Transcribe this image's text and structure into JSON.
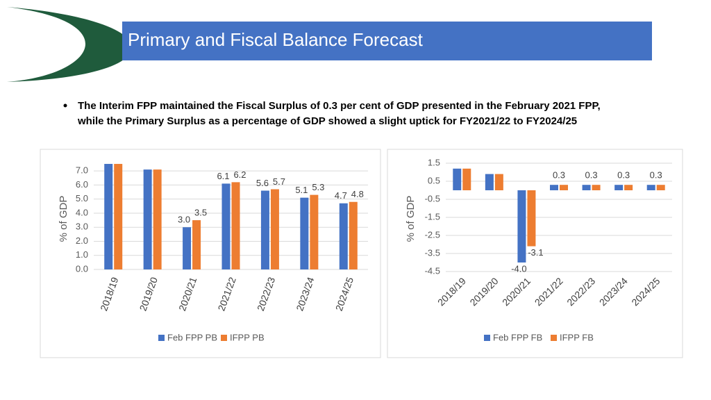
{
  "title": "Primary and Fiscal Balance Forecast",
  "bullet": [
    "The Interim FPP maintained the Fiscal Surplus of 0.3 per cent of GDP presented in the February 2021 FPP,",
    "while the Primary Surplus as a percentage of GDP showed a slight uptick for FY2021/22 to FY2024/25"
  ],
  "chart_data": [
    {
      "type": "bar",
      "y_label": "% of GDP",
      "categories": [
        "2018/19",
        "2019/20",
        "2020/21",
        "2021/22",
        "2022/23",
        "2023/24",
        "2024/25"
      ],
      "series": [
        {
          "name": "Feb FPP PB",
          "color": "#4472c4",
          "values": [
            7.5,
            7.1,
            3.0,
            6.1,
            5.6,
            5.1,
            4.7
          ],
          "value_labels": [
            null,
            null,
            "3.0",
            "6.1",
            "5.6",
            "5.1",
            "4.7"
          ]
        },
        {
          "name": "IFPP PB",
          "color": "#ed7d31",
          "values": [
            7.5,
            7.1,
            3.5,
            6.2,
            5.7,
            5.3,
            4.8
          ],
          "value_labels": [
            null,
            null,
            "3.5",
            "6.2",
            "5.7",
            "5.3",
            "4.8"
          ]
        }
      ],
      "ylim": [
        0,
        7.6
      ],
      "yticks": [
        {
          "value": 0,
          "label": "0.0"
        },
        {
          "value": 1,
          "label": "1.0"
        },
        {
          "value": 2,
          "label": "2.0"
        },
        {
          "value": 3,
          "label": "3.0"
        },
        {
          "value": 4,
          "label": "4.0"
        },
        {
          "value": 5,
          "label": "5.0"
        },
        {
          "value": 6,
          "label": "6.0"
        },
        {
          "value": 7,
          "label": "7.0"
        }
      ],
      "grid": true,
      "legend": "bottom"
    },
    {
      "type": "bar",
      "y_label": "% of GDP",
      "categories": [
        "2018/19",
        "2019/20",
        "2020/21",
        "2021/22",
        "2022/23",
        "2023/24",
        "2024/25"
      ],
      "series": [
        {
          "name": "Feb FPP FB",
          "color": "#4472c4",
          "values": [
            1.2,
            0.9,
            -4.0,
            0.3,
            0.3,
            0.3,
            0.3
          ],
          "value_labels": [
            null,
            null,
            "-4.0",
            "0.3",
            "0.3",
            "0.3",
            "0.3"
          ]
        },
        {
          "name": "IFPP FB",
          "color": "#ed7d31",
          "values": [
            1.2,
            0.9,
            -3.1,
            0.3,
            0.3,
            0.3,
            0.3
          ],
          "value_labels": [
            null,
            null,
            "-3.1",
            null,
            null,
            null,
            null
          ]
        }
      ],
      "ylim": [
        -4.5,
        1.5
      ],
      "yticks": [
        1.5,
        0.5,
        -0.5,
        -1.5,
        -2.5,
        -3.5,
        -4.5
      ],
      "grid": true,
      "legend": "bottom"
    }
  ]
}
